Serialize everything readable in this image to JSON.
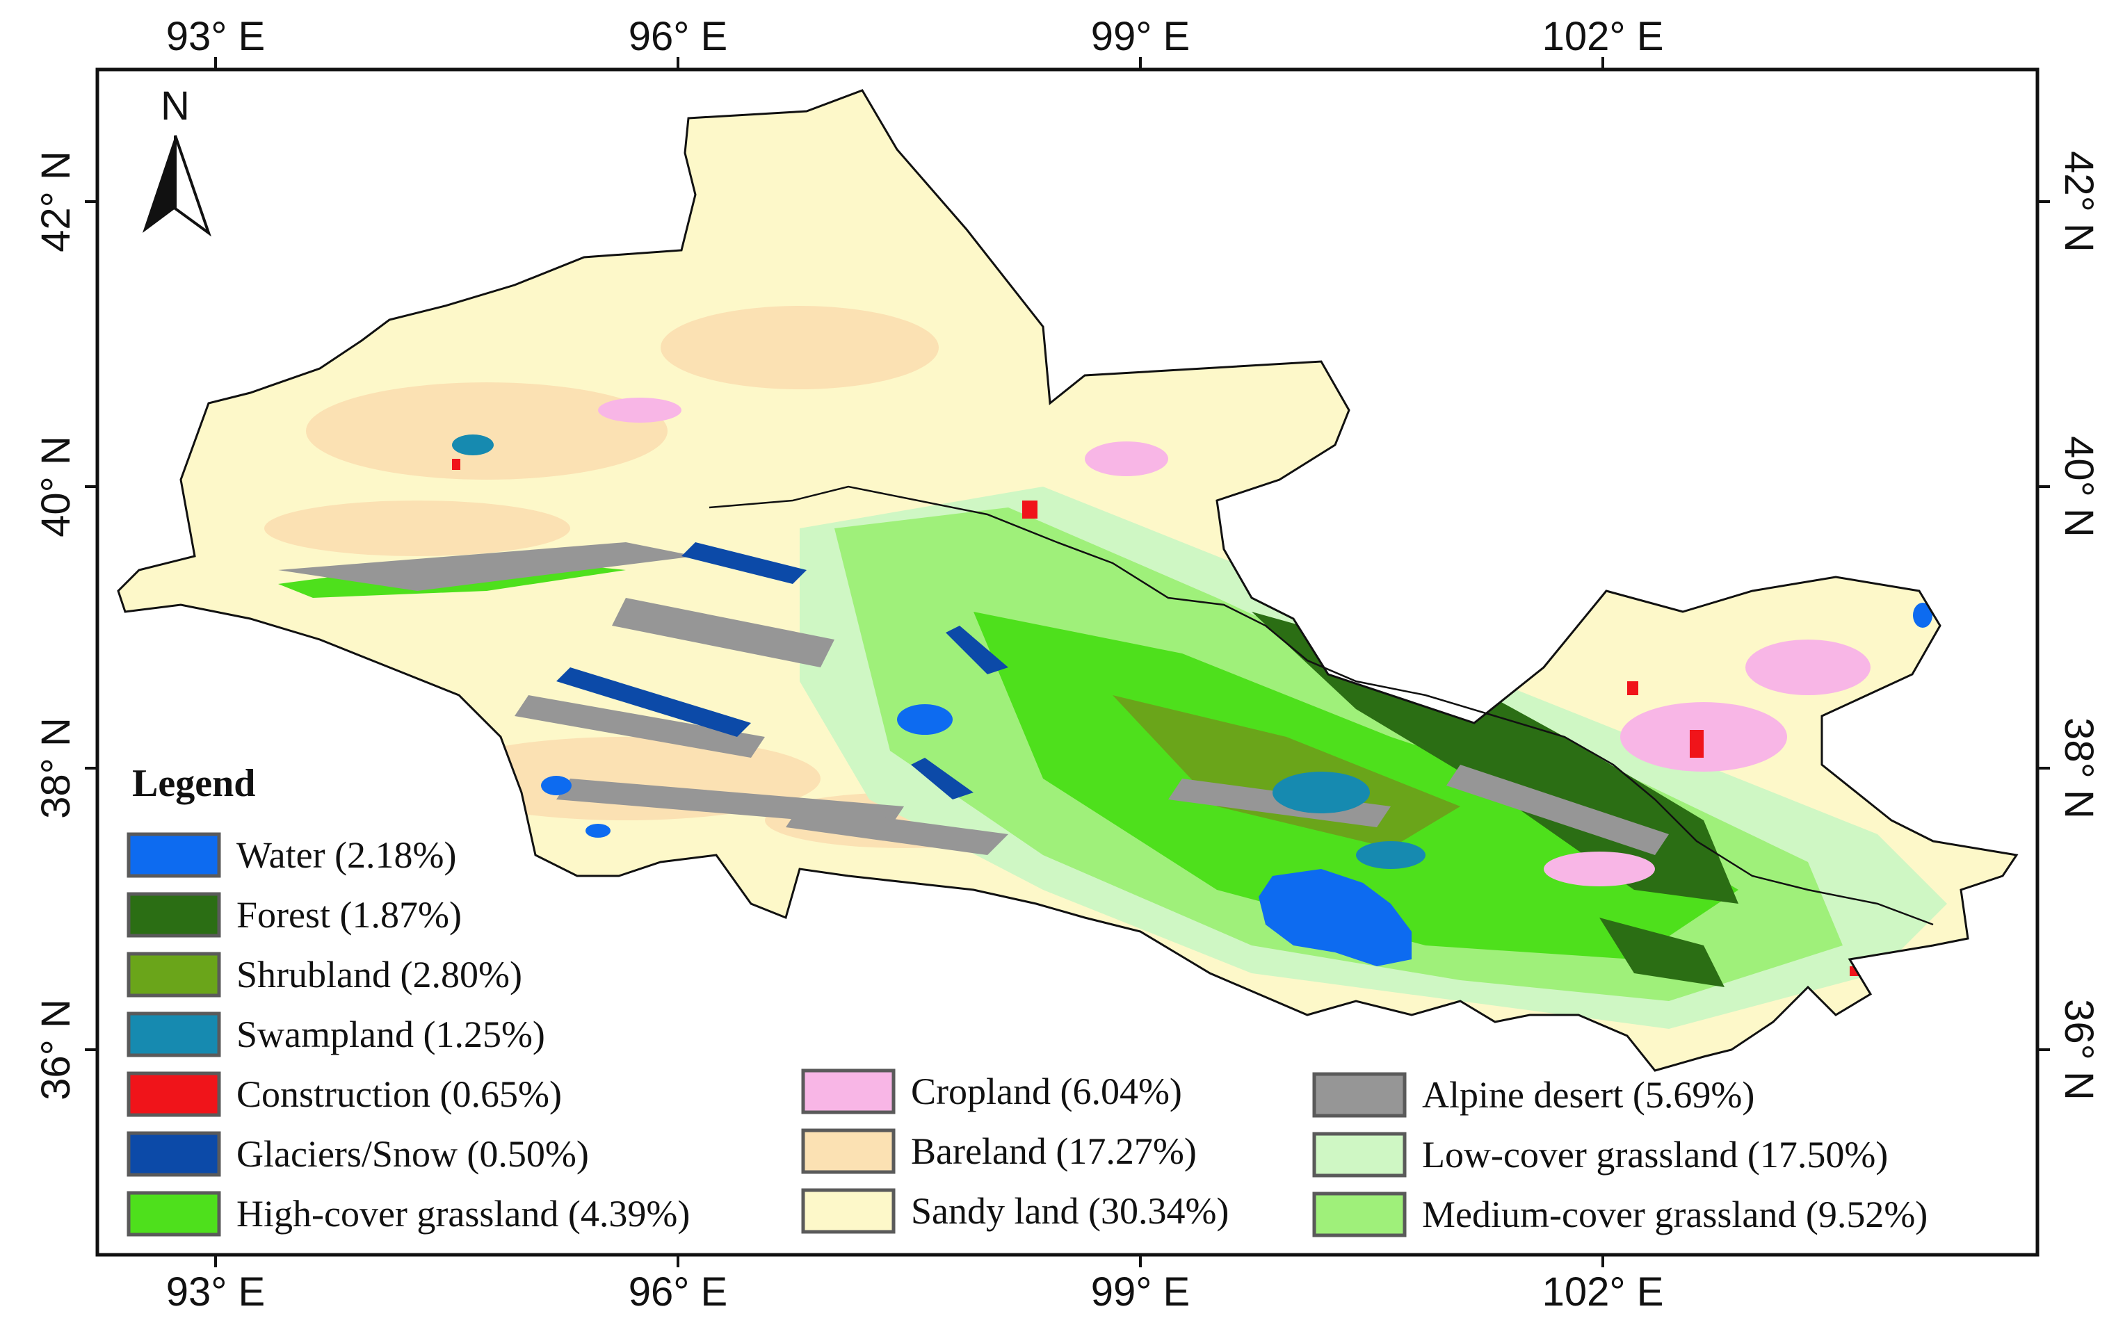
{
  "map": {
    "longitude_ticks": [
      "93° E",
      "96° E",
      "99° E",
      "102° E"
    ],
    "latitude_ticks": [
      "42° N",
      "40° N",
      "38° N",
      "36° N"
    ],
    "north_arrow_label": "N"
  },
  "legend": {
    "title": "Legend",
    "items": [
      {
        "label": "Water (2.18%)",
        "color": "#0d6bf0"
      },
      {
        "label": "Forest (1.87%)",
        "color": "#2b6e14"
      },
      {
        "label": "Shrubland (2.80%)",
        "color": "#6aa51a"
      },
      {
        "label": "Swampland (1.25%)",
        "color": "#168ab0"
      },
      {
        "label": "Construction (0.65%)",
        "color": "#f0141a"
      },
      {
        "label": "Glaciers/Snow (0.50%)",
        "color": "#0c4aa8"
      },
      {
        "label": "High-cover grassland (4.39%)",
        "color": "#4ee01c"
      },
      {
        "label": "Cropland (6.04%)",
        "color": "#f8b6e6"
      },
      {
        "label": "Bareland (17.27%)",
        "color": "#fbe1b3"
      },
      {
        "label": "Sandy land (30.34%)",
        "color": "#fdf8c9"
      },
      {
        "label": "Alpine desert (5.69%)",
        "color": "#969696"
      },
      {
        "label": "Low-cover grassland (17.50%)",
        "color": "#cff7c4"
      },
      {
        "label": "Medium-cover grassland (9.52%)",
        "color": "#9ff07a"
      }
    ]
  }
}
